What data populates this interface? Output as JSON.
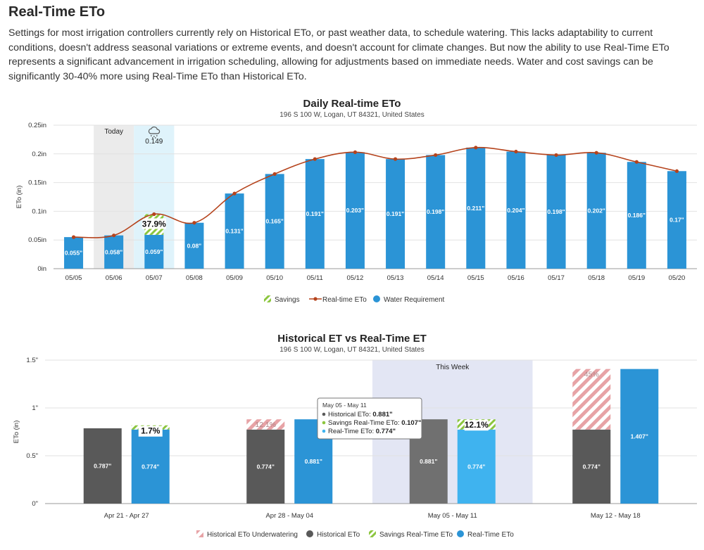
{
  "page": {
    "title": "Real-Time ETo",
    "intro": "Settings for most irrigation controllers currently rely on Historical ETo, or past weather data, to schedule watering. This lacks adaptability to current conditions, doesn't address seasonal variations or extreme events, and doesn't account for climate changes. But now the ability to use Real-Time ETo represents a significant advancement in irrigation scheduling, allowing for adjustments based on immediate needs. Water and cost savings can be significantly 30-40% more using Real-Time ETo than Historical ETo."
  },
  "colors": {
    "blue": "#2b94d6",
    "line": "#b5431c",
    "dark_gray": "#595959",
    "gray": "#707070",
    "light_blue": "#3fb3ef",
    "green": "#8cc63f",
    "red_hatch": "#e7a3a6",
    "today_band": "#ebebeb",
    "rain_band": "#dff3fb",
    "week_band": "#e3e6f4"
  },
  "chart_data": [
    {
      "type": "bar",
      "title": "Daily Real-time ETo",
      "subtitle": "196 S 100 W, Logan, UT 84321, United States",
      "ylabel": "ETo (in)",
      "xlabel": "",
      "ylim": [
        0,
        0.25
      ],
      "yticks": [
        "0in",
        "0.05in",
        "0.1in",
        "0.15in",
        "0.2in",
        "0.25in"
      ],
      "grid": true,
      "legend_position": "bottom",
      "categories": [
        "05/05",
        "05/06",
        "05/07",
        "05/08",
        "05/09",
        "05/10",
        "05/11",
        "05/12",
        "05/13",
        "05/14",
        "05/15",
        "05/16",
        "05/17",
        "05/18",
        "05/19",
        "05/20"
      ],
      "series": [
        {
          "name": "Water Requirement",
          "kind": "bar",
          "values": [
            0.055,
            0.058,
            0.059,
            0.08,
            0.131,
            0.165,
            0.191,
            0.203,
            0.191,
            0.198,
            0.211,
            0.204,
            0.198,
            0.202,
            0.186,
            0.17
          ],
          "labels": [
            "0.055\"",
            "0.058\"",
            "0.059\"",
            "0.08\"",
            "0.131\"",
            "0.165\"",
            "0.191\"",
            "0.203\"",
            "0.191\"",
            "0.198\"",
            "0.211\"",
            "0.204\"",
            "0.198\"",
            "0.202\"",
            "0.186\"",
            "0.17\""
          ]
        },
        {
          "name": "Real-time ETo",
          "kind": "line",
          "values": [
            0.055,
            0.058,
            0.095,
            0.08,
            0.131,
            0.165,
            0.191,
            0.203,
            0.191,
            0.198,
            0.211,
            0.204,
            0.198,
            0.202,
            0.186,
            0.17
          ]
        },
        {
          "name": "Savings",
          "kind": "stack",
          "values": [
            0,
            0,
            0.036,
            0,
            0,
            0,
            0,
            0,
            0,
            0,
            0,
            0,
            0,
            0,
            0,
            0
          ]
        }
      ],
      "annotations": {
        "today_label": "Today",
        "today_index": 1,
        "rain_index": 2,
        "rain_value": "0.149",
        "savings_pct": "37.9%"
      },
      "legend": [
        "Savings",
        "Real-time ETo",
        "Water Requirement"
      ]
    },
    {
      "type": "bar",
      "title": "Historical ET vs Real-Time ET",
      "subtitle": "196 S 100 W, Logan, UT 84321, United States",
      "ylabel": "ETo (in)",
      "xlabel": "",
      "ylim": [
        0,
        1.5
      ],
      "yticks": [
        "0\"",
        "0.5\"",
        "1\"",
        "1.5\""
      ],
      "grid": true,
      "legend_position": "bottom",
      "categories": [
        "Apr 21 - Apr 27",
        "Apr 28 - May 04",
        "May 05 - May 11",
        "May 12 - May 18"
      ],
      "series": [
        {
          "name": "Historical ETo",
          "values": [
            0.787,
            0.774,
            0.881,
            0.774
          ],
          "labels": [
            "0.787\"",
            "0.774\"",
            "0.881\"",
            "0.774\""
          ]
        },
        {
          "name": "Historical ETo Underwatering",
          "values": [
            0,
            0.107,
            0,
            0.633
          ],
          "labels": [
            "",
            "12.1%",
            "",
            "45%"
          ]
        },
        {
          "name": "Real-Time ETo",
          "values": [
            0.774,
            0.881,
            0.774,
            1.407
          ],
          "labels": [
            "0.774\"",
            "0.881\"",
            "0.774\"",
            "1.407\""
          ]
        },
        {
          "name": "Savings Real-Time ETo",
          "values": [
            0.013,
            0,
            0.107,
            0
          ],
          "labels": [
            "1.7%",
            "",
            "12.1%",
            ""
          ]
        }
      ],
      "annotations": {
        "this_week_label": "This Week",
        "this_week_index": 2
      },
      "tooltip": {
        "title": "May 05 - May 11",
        "rows": [
          {
            "label": "Historical ETo: ",
            "value": "0.881\""
          },
          {
            "label": "Savings Real-Time ETo: ",
            "value": "0.107\""
          },
          {
            "label": "Real-Time ETo: ",
            "value": "0.774\""
          }
        ]
      },
      "legend": [
        "Historical ETo Underwatering",
        "Historical ETo",
        "Savings Real-Time ETo",
        "Real-Time ETo"
      ]
    }
  ]
}
